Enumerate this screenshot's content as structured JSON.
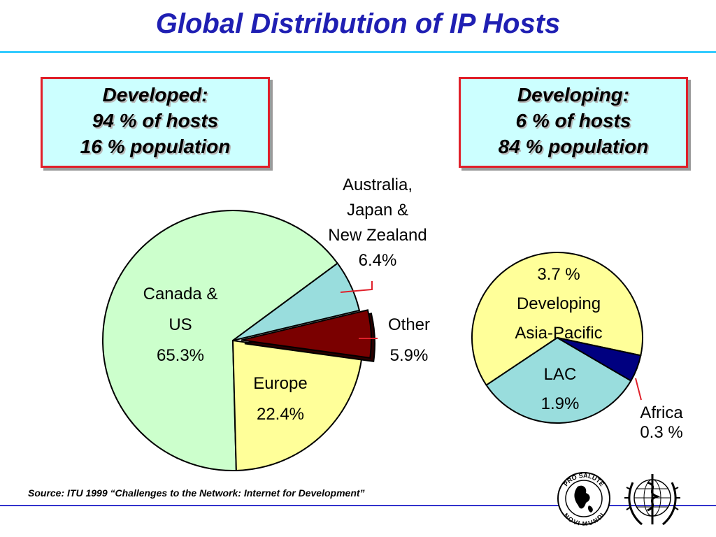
{
  "title": "Global Distribution of IP Hosts",
  "boxes": {
    "developed": {
      "line1": "Developed:",
      "line2": "94 % of hosts",
      "line3": "16 % population"
    },
    "developing": {
      "line1": "Developing:",
      "line2": "6 % of hosts",
      "line3": "84 % population"
    }
  },
  "source": "Source: ITU 1999 “Challenges to the Network: Internet for Development”",
  "colors": {
    "title": "#1f1fb3",
    "rule": "#33ccff",
    "box_fill": "#ccffff",
    "box_border": "#e0202a",
    "leader": "#e0202a"
  },
  "chart_data": [
    {
      "type": "pie",
      "slices": [
        {
          "label_lines": [
            "Canada &",
            "US",
            "65.3%"
          ],
          "value": 65.3,
          "color": "#ccffcc"
        },
        {
          "label_lines": [
            "Australia,",
            "Japan &",
            "New Zealand",
            "6.4%"
          ],
          "value": 6.4,
          "color": "#99dddd"
        },
        {
          "label_lines": [
            "Other",
            "5.9%"
          ],
          "value": 5.9,
          "color": "#7a0000",
          "exploded": true
        },
        {
          "label_lines": [
            "Europe",
            "22.4%"
          ],
          "value": 22.4,
          "color": "#ffff99"
        }
      ]
    },
    {
      "type": "pie",
      "slices": [
        {
          "label_lines": [
            "3.7 %",
            "Developing",
            "Asia-Pacific"
          ],
          "value": 3.7,
          "color": "#ffff99"
        },
        {
          "label_lines": [
            "Africa",
            "0.3 %"
          ],
          "value": 0.3,
          "color": "#000080"
        },
        {
          "label_lines": [
            "LAC",
            "1.9%"
          ],
          "value": 1.9,
          "color": "#99dddd"
        }
      ]
    }
  ],
  "logos": {
    "pro_salute": {
      "text_top": "PRO SALUTE",
      "text_bottom": "NOVI MUNDI"
    }
  }
}
